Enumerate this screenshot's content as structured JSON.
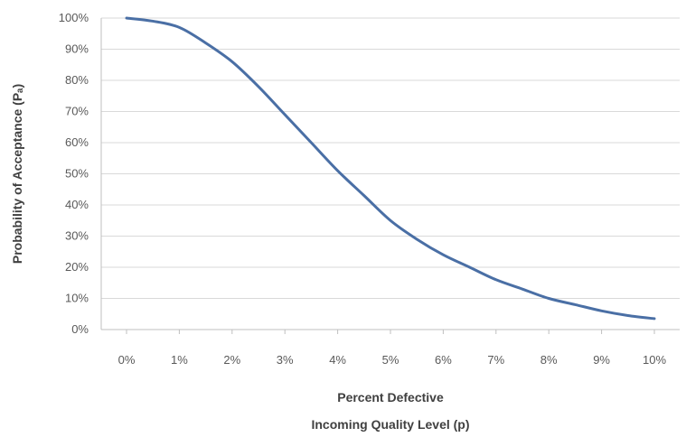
{
  "chart_data": {
    "type": "line",
    "title": "",
    "xlabel": "Percent Defective",
    "xlabel_line2": "Incoming Quality Level (p)",
    "ylabel": "Probability of Acceptance (Pₐ)",
    "x": [
      0,
      0.5,
      1,
      1.5,
      2,
      2.5,
      3,
      3.5,
      4,
      4.5,
      5,
      5.5,
      6,
      6.5,
      7,
      7.5,
      8,
      8.5,
      9,
      9.5,
      10
    ],
    "x_tick_labels": [
      "0%",
      "1%",
      "2%",
      "3%",
      "4%",
      "5%",
      "6%",
      "7%",
      "8%",
      "9%",
      "10%"
    ],
    "y_tick_labels": [
      "0%",
      "10%",
      "20%",
      "30%",
      "40%",
      "50%",
      "60%",
      "70%",
      "80%",
      "90%",
      "100%"
    ],
    "xlim": [
      0,
      10
    ],
    "ylim": [
      0,
      100
    ],
    "grid": "horizontal",
    "legend": "none",
    "series": [
      {
        "values": [
          100,
          99,
          97,
          92,
          86,
          78,
          69,
          60,
          51,
          43,
          35,
          29,
          24,
          20,
          16,
          13,
          10,
          8,
          6,
          4.5,
          3.5
        ],
        "color": "#4a6fa5"
      }
    ]
  }
}
